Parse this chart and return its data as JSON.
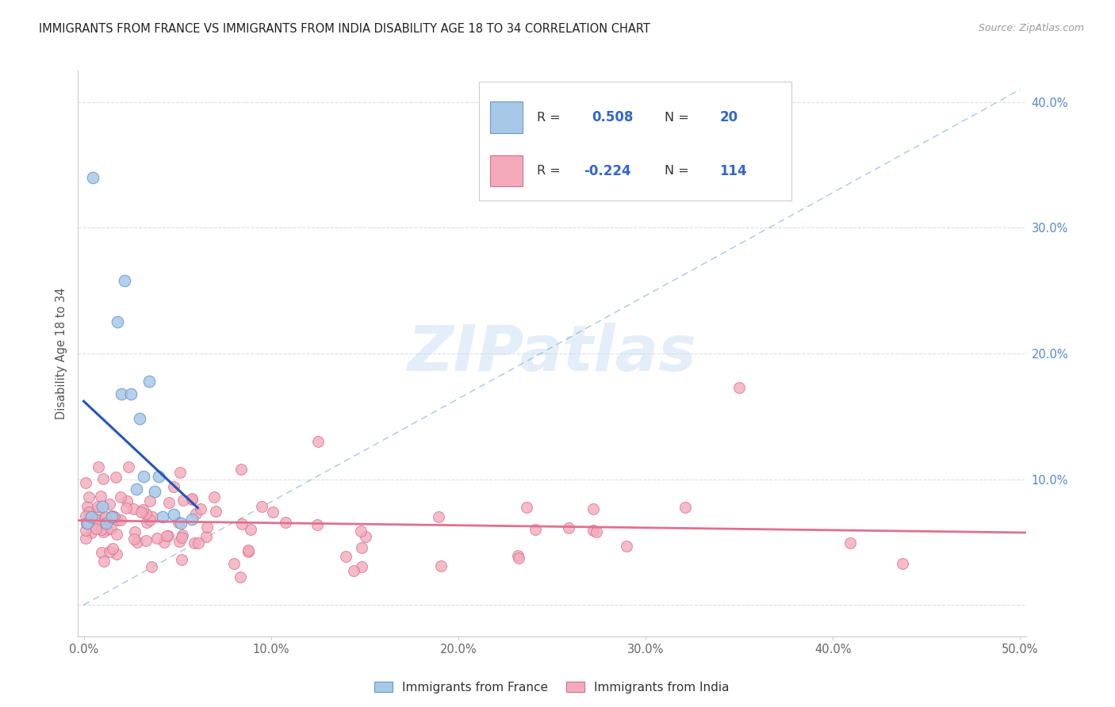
{
  "title": "IMMIGRANTS FROM FRANCE VS IMMIGRANTS FROM INDIA DISABILITY AGE 18 TO 34 CORRELATION CHART",
  "source": "Source: ZipAtlas.com",
  "ylabel": "Disability Age 18 to 34",
  "xlim": [
    -0.003,
    0.503
  ],
  "ylim": [
    -0.025,
    0.425
  ],
  "france_color": "#a8c8e8",
  "france_edge": "#6699cc",
  "india_color": "#f4aabb",
  "india_edge": "#d07090",
  "france_line_color": "#2255bb",
  "india_line_color": "#e07090",
  "dash_color": "#99b8d8",
  "legend_R_color": "#3366cc",
  "watermark_color": "#cce0f5",
  "grid_color": "#dddddd",
  "tick_color_y": "#5588cc",
  "tick_color_x": "#666666",
  "france_R": 0.508,
  "france_N": 20,
  "india_R": -0.224,
  "india_N": 114,
  "france_x": [
    0.002,
    0.004,
    0.005,
    0.01,
    0.012,
    0.015,
    0.018,
    0.02,
    0.022,
    0.025,
    0.028,
    0.03,
    0.032,
    0.035,
    0.038,
    0.04,
    0.042,
    0.048,
    0.052,
    0.058
  ],
  "france_y": [
    0.065,
    0.07,
    0.34,
    0.078,
    0.065,
    0.07,
    0.225,
    0.168,
    0.258,
    0.168,
    0.092,
    0.148,
    0.102,
    0.178,
    0.09,
    0.102,
    0.07,
    0.072,
    0.065,
    0.068
  ]
}
